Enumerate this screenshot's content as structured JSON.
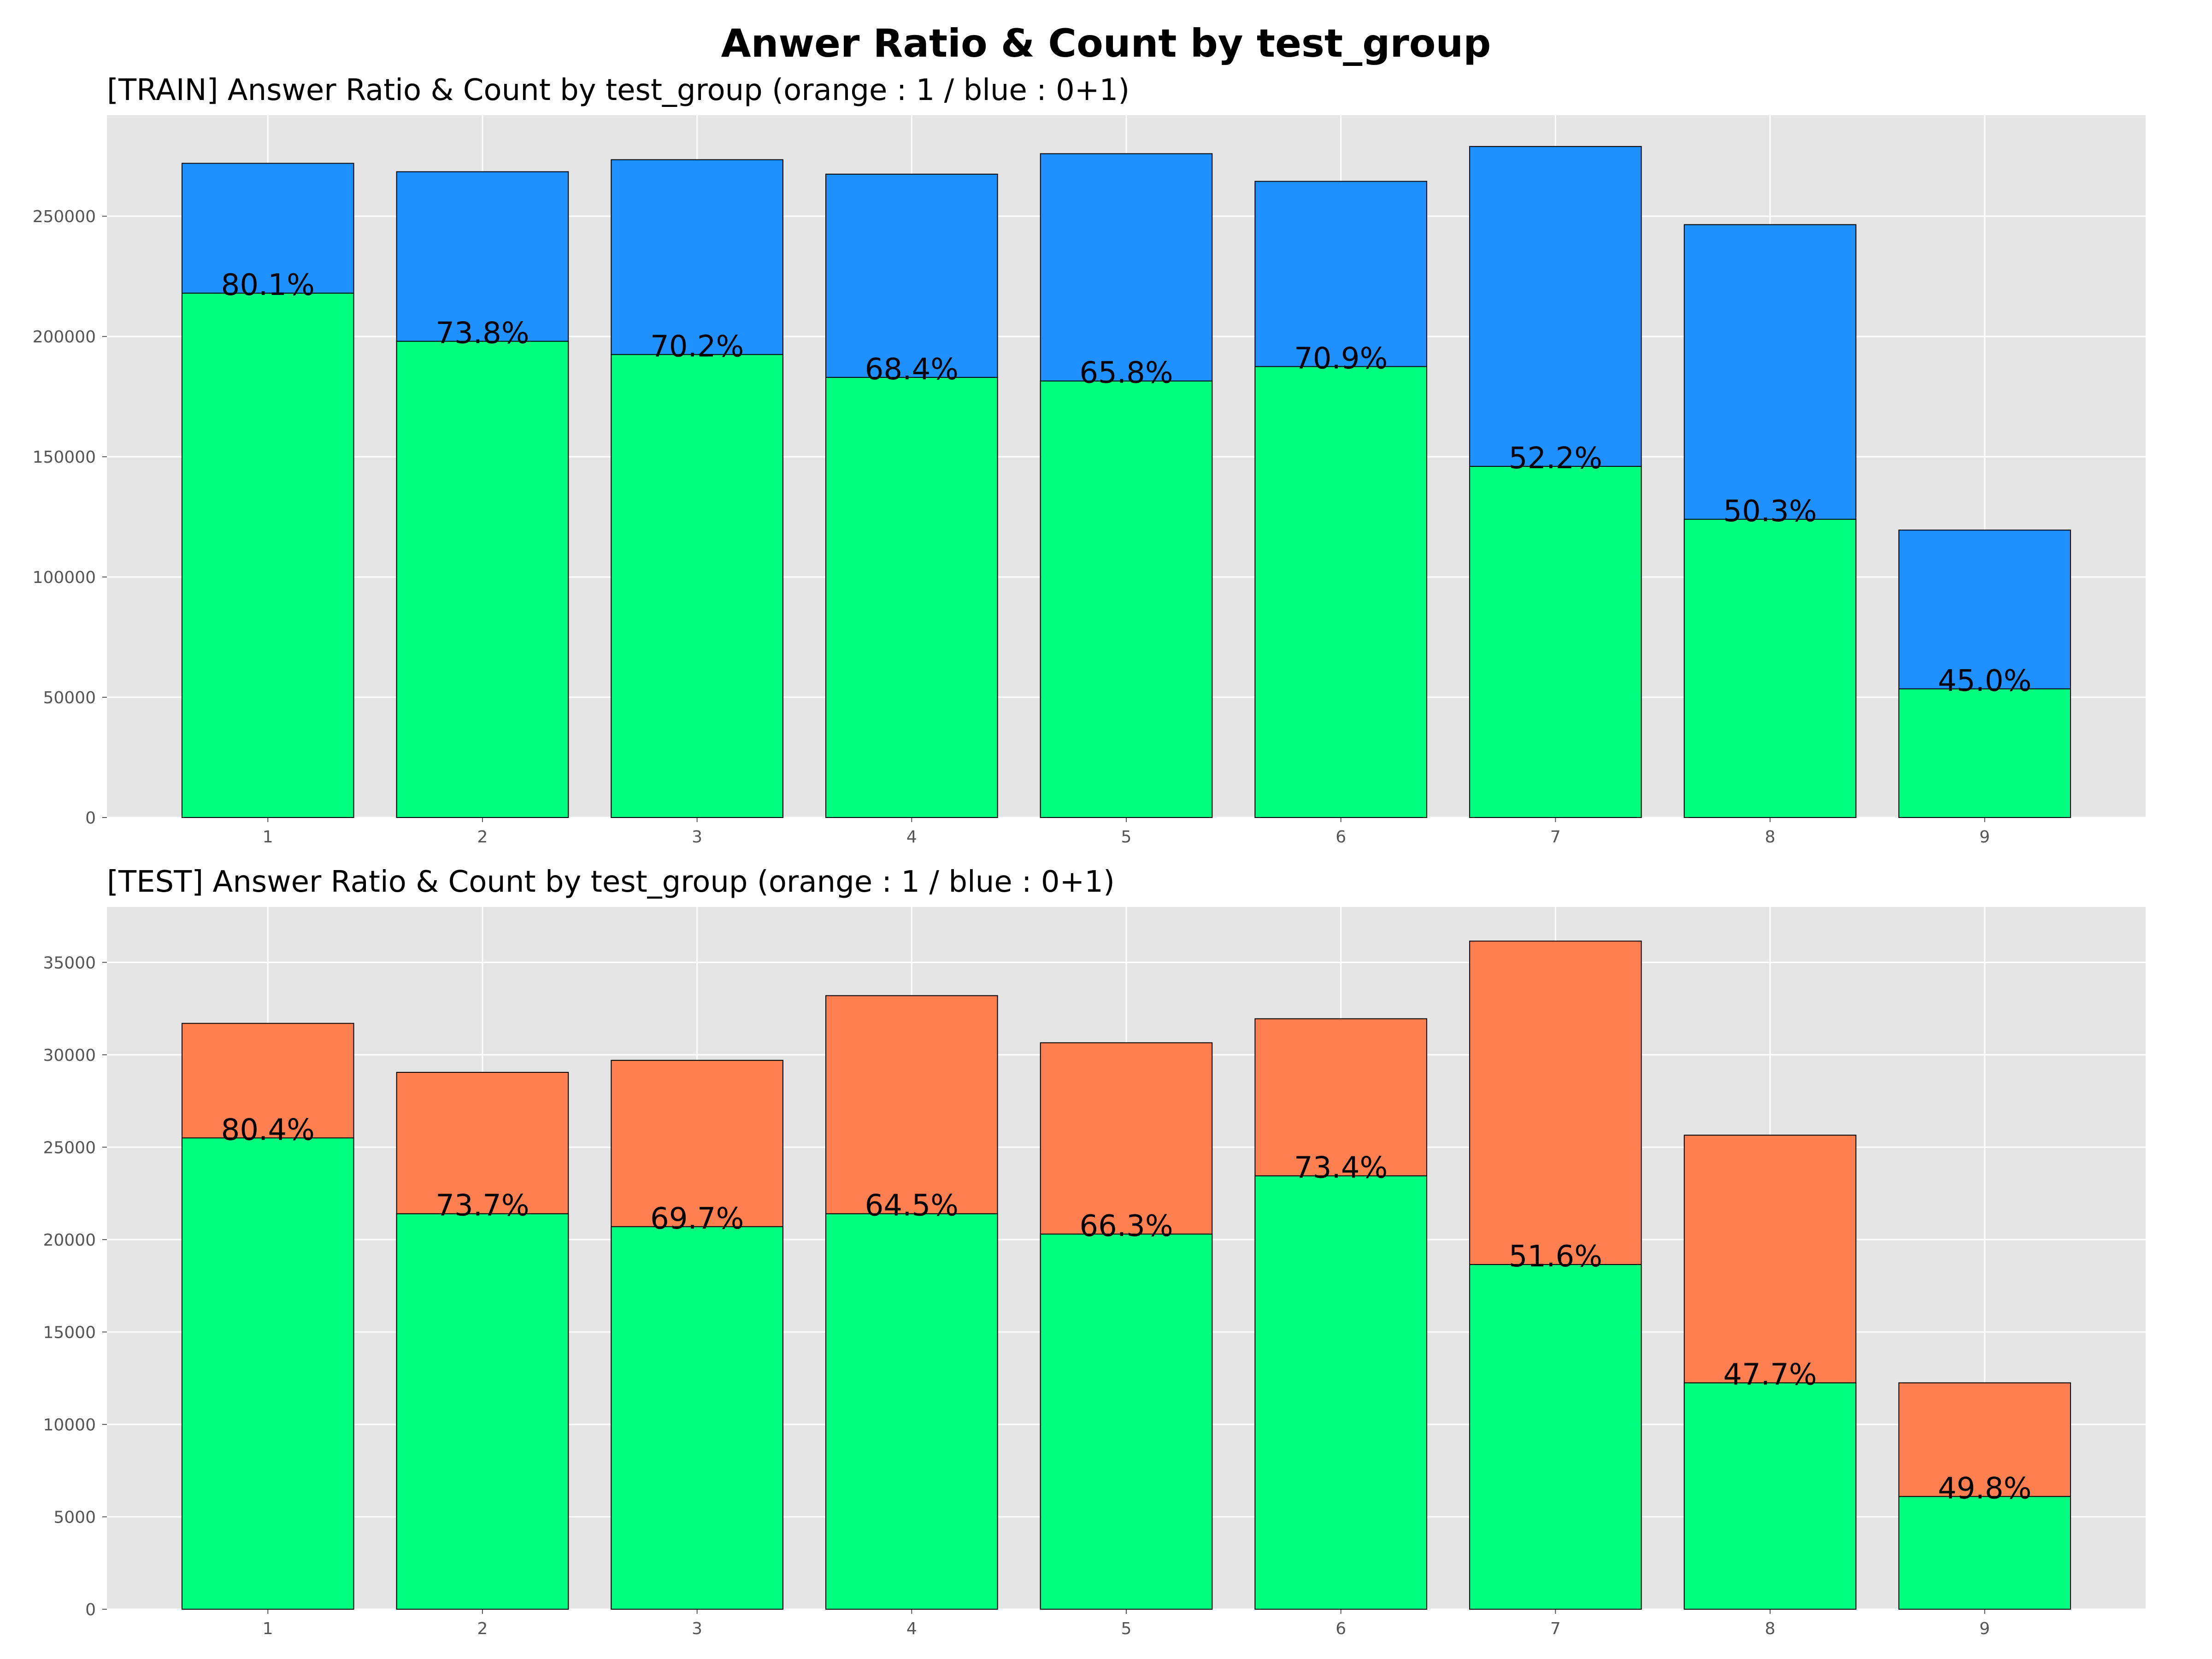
{
  "figure": {
    "title": "Anwer Ratio & Count by test_group"
  },
  "colors": {
    "background": "#e5e5e5",
    "grid": "#ffffff",
    "answer_correct": "#00ff7f",
    "train_total": "#1e90ff",
    "test_total": "#ff7f50",
    "edge": "#000000"
  },
  "chart_data": [
    {
      "type": "bar",
      "title": "[TRAIN] Answer Ratio & Count by test_group (orange : 1 / blue : 0+1)",
      "categories": [
        "1",
        "2",
        "3",
        "4",
        "5",
        "6",
        "7",
        "8",
        "9"
      ],
      "series": [
        {
          "color": "#1e90ff",
          "values": [
            272000,
            268500,
            273500,
            267500,
            276000,
            264500,
            279000,
            246500,
            119500
          ]
        },
        {
          "color": "#00ff7f",
          "values": [
            218000,
            198000,
            192500,
            183000,
            181500,
            187500,
            146000,
            124000,
            53500
          ]
        }
      ],
      "bar_labels": [
        "80.1%",
        "73.8%",
        "70.2%",
        "68.4%",
        "65.8%",
        "70.9%",
        "52.2%",
        "50.3%",
        "45.0%"
      ],
      "yticks": [
        0,
        50000,
        100000,
        150000,
        200000,
        250000
      ],
      "ylim": [
        0,
        292000
      ],
      "grid": true
    },
    {
      "type": "bar",
      "title": "[TEST] Answer Ratio & Count by test_group (orange : 1 / blue : 0+1)",
      "categories": [
        "1",
        "2",
        "3",
        "4",
        "5",
        "6",
        "7",
        "8",
        "9"
      ],
      "series": [
        {
          "color": "#ff7f50",
          "values": [
            31700,
            29050,
            29700,
            33200,
            30650,
            31950,
            36150,
            25650,
            12250
          ]
        },
        {
          "color": "#00ff7f",
          "values": [
            25500,
            21400,
            20700,
            21400,
            20300,
            23450,
            18650,
            12250,
            6100
          ]
        }
      ],
      "bar_labels": [
        "80.4%",
        "73.7%",
        "69.7%",
        "64.5%",
        "66.3%",
        "73.4%",
        "51.6%",
        "47.7%",
        "49.8%"
      ],
      "yticks": [
        0,
        5000,
        10000,
        15000,
        20000,
        25000,
        30000,
        35000
      ],
      "ylim": [
        0,
        38000
      ],
      "grid": true
    }
  ]
}
